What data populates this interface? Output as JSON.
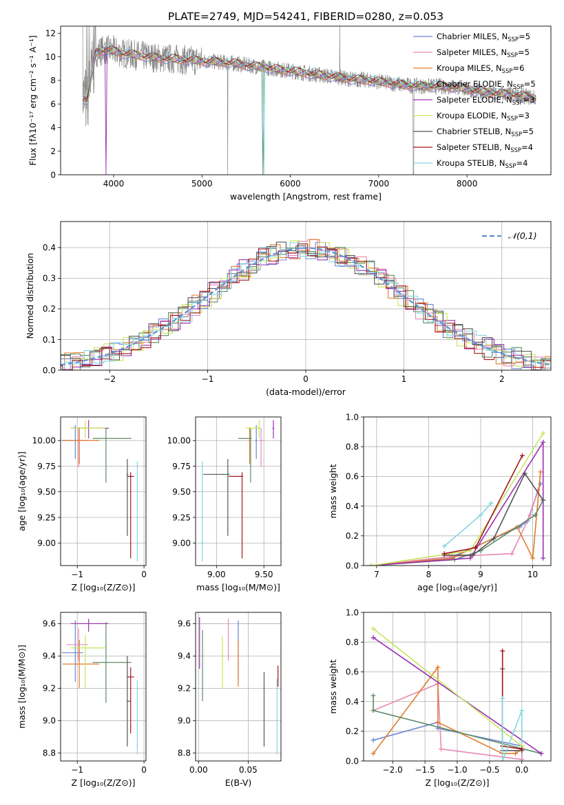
{
  "figure_title": "PLATE=2749, MJD=54241, FIBERID=0280, z=0.053",
  "colors": {
    "series": [
      "#6a85d3",
      "#e887b4",
      "#e07b2b",
      "#5c8a64",
      "#9b2fb0",
      "#c5e65a",
      "#555555",
      "#a3141a",
      "#84d6df"
    ],
    "data_spectrum": "#888888",
    "normal_curve": "#5a8fd6",
    "grid": "#b0b0b0"
  },
  "chart_data": [
    {
      "id": "spectrum",
      "type": "line",
      "title": "PLATE=2749, MJD=54241, FIBERID=0280, z=0.053",
      "xlabel": "wavelength [Angstrom, rest frame]",
      "ylabel": "Flux [fλ10⁻¹⁷ erg cm⁻² s⁻¹ A⁻¹]",
      "xlim": [
        3400,
        8950
      ],
      "ylim": [
        0,
        12.6
      ],
      "xticks": [
        4000,
        5000,
        6000,
        7000,
        8000
      ],
      "yticks": [
        0,
        2,
        4,
        6,
        8,
        10,
        12
      ],
      "grid": false,
      "legend_position": "top-right",
      "legend": [
        "Chabrier MILES, N_SSP=5",
        "Salpeter MILES, N_SSP=5",
        "Kroupa MILES, N_SSP=6",
        "Chabrier ELODIE, N_SSP=5",
        "Salpeter ELODIE, N_SSP=3",
        "Kroupa ELODIE, N_SSP=3",
        "Chabrier STELIB, N_SSP=5",
        "Salpeter STELIB, N_SSP=4",
        "Kroupa STELIB, N_SSP=4"
      ],
      "continuum": {
        "x": [
          3650,
          3700,
          3760,
          3800,
          3900,
          4000,
          4100,
          4200,
          4300,
          4400,
          4500,
          4700,
          4900,
          5100,
          5300,
          5500,
          5700,
          5900,
          6100,
          6300,
          6500,
          6700,
          6900,
          7100,
          7300,
          7500,
          7700,
          7900,
          8100,
          8300,
          8500,
          8700,
          8780
        ],
        "y": [
          6.5,
          6.3,
          8.8,
          10.4,
          10.6,
          10.5,
          10.3,
          10.2,
          10.1,
          10.0,
          9.9,
          9.8,
          9.7,
          9.6,
          9.5,
          9.3,
          9.1,
          8.9,
          8.7,
          8.5,
          8.3,
          8.1,
          8.0,
          7.8,
          7.6,
          7.5,
          7.5,
          7.4,
          7.1,
          6.9,
          6.8,
          6.6,
          6.5
        ]
      }
    },
    {
      "id": "residuals",
      "type": "step",
      "xlabel": "(data-model)/error",
      "ylabel": "Normed distribution",
      "xlim": [
        -2.5,
        2.5
      ],
      "ylim": [
        0,
        0.485
      ],
      "xticks": [
        -2,
        -1,
        0,
        1,
        2
      ],
      "yticks": [
        0.0,
        0.1,
        0.2,
        0.3,
        0.4
      ],
      "grid": true,
      "legend": [
        "𝒩(0,1)"
      ],
      "legend_position": "top-right",
      "normal": {
        "mean": 0,
        "sigma": 1
      }
    },
    {
      "id": "age_vs_z",
      "type": "errorbar",
      "xlabel": "Z [log₁₀(Z/Z⊙)]",
      "ylabel": "age  [log₁₀(age/yr)]",
      "xlim": [
        -1.25,
        0.03
      ],
      "ylim": [
        8.78,
        10.23
      ],
      "xticks": [
        -1,
        0
      ],
      "yticks": [
        9.0,
        9.25,
        9.5,
        9.75,
        10.0
      ],
      "grid": true,
      "points": [
        {
          "x": -1.03,
          "xerr": [
            0.2,
            0.12
          ],
          "y": 10.0,
          "yerr": [
            0.18,
            0.15
          ]
        },
        {
          "x": -0.98,
          "xerr": [
            0.18,
            0.14
          ],
          "y": 10.0,
          "yerr": [
            0.26,
            0.12
          ]
        },
        {
          "x": -0.97,
          "xerr": [
            0.25,
            0.3
          ],
          "y": 10.0,
          "yerr": [
            0.23,
            0.13
          ]
        },
        {
          "x": -0.57,
          "xerr": [
            0.2,
            0.38
          ],
          "y": 10.02,
          "yerr": [
            0.43,
            0.1
          ]
        },
        {
          "x": -0.83,
          "xerr": [
            0.27,
            0.3
          ],
          "y": 10.12,
          "yerr": [
            0.1,
            0.08
          ]
        },
        {
          "x": -0.88,
          "xerr": [
            0.22,
            0.3
          ],
          "y": 10.12,
          "yerr": [
            0.1,
            0.08
          ]
        },
        {
          "x": -0.25,
          "xerr": [
            0.01,
            0.01
          ],
          "y": 9.67,
          "yerr": [
            0.6,
            0.15
          ]
        },
        {
          "x": -0.2,
          "xerr": [
            0.05,
            0.05
          ],
          "y": 9.65,
          "yerr": [
            0.8,
            0.04
          ]
        },
        {
          "x": -0.1,
          "xerr": [
            0.01,
            0.01
          ],
          "y": 9.0,
          "yerr": [
            0.18,
            0.8
          ]
        }
      ]
    },
    {
      "id": "age_vs_mass",
      "type": "errorbar",
      "xlabel": "mass [log₁₀(M/M⊙)]",
      "ylabel": "",
      "xlim": [
        8.78,
        9.68
      ],
      "ylim": [
        8.78,
        10.23
      ],
      "xticks": [
        9.0,
        9.5
      ],
      "yticks": [
        9.0,
        9.25,
        9.5,
        9.75,
        10.0
      ],
      "grid": true,
      "points": [
        {
          "x": 9.42,
          "xerr": [
            0.01,
            0.01
          ],
          "y": 10.0,
          "yerr": [
            0.18,
            0.15
          ]
        },
        {
          "x": 9.47,
          "xerr": [
            0.02,
            0.02
          ],
          "y": 10.0,
          "yerr": [
            0.26,
            0.12
          ]
        },
        {
          "x": 9.35,
          "xerr": [
            0.01,
            0.01
          ],
          "y": 10.0,
          "yerr": [
            0.23,
            0.13
          ]
        },
        {
          "x": 9.36,
          "xerr": [
            0.13,
            0.01
          ],
          "y": 10.02,
          "yerr": [
            0.43,
            0.1
          ]
        },
        {
          "x": 9.6,
          "xerr": [
            0.01,
            0.01
          ],
          "y": 10.12,
          "yerr": [
            0.1,
            0.08
          ]
        },
        {
          "x": 9.45,
          "xerr": [
            0.14,
            0.02
          ],
          "y": 10.12,
          "yerr": [
            0.1,
            0.08
          ]
        },
        {
          "x": 9.12,
          "xerr": [
            0.26,
            0.02
          ],
          "y": 9.67,
          "yerr": [
            0.6,
            0.15
          ]
        },
        {
          "x": 9.27,
          "xerr": [
            0.14,
            0.01
          ],
          "y": 9.65,
          "yerr": [
            0.8,
            0.04
          ]
        },
        {
          "x": 8.85,
          "xerr": [
            0.02,
            0.02
          ],
          "y": 9.0,
          "yerr": [
            0.18,
            0.8
          ]
        }
      ]
    },
    {
      "id": "mass_weight_vs_age",
      "type": "line",
      "xlabel": "age  [log₁₀(age/yr)]",
      "ylabel": "mass weight",
      "xlim": [
        6.75,
        10.35
      ],
      "ylim": [
        0,
        1.0
      ],
      "xticks": [
        7,
        8,
        9,
        10
      ],
      "yticks": [
        0.0,
        0.2,
        0.4,
        0.6,
        0.8,
        1.0
      ],
      "grid": true,
      "series": [
        {
          "x": [
            6.9,
            8.4,
            9.75,
            9.9,
            10.15
          ],
          "y": [
            0.0,
            0.05,
            0.26,
            0.3,
            0.55
          ]
        },
        {
          "x": [
            6.9,
            8.4,
            9.6,
            9.95,
            10.1
          ],
          "y": [
            0.0,
            0.06,
            0.08,
            0.34,
            0.51
          ]
        },
        {
          "x": [
            6.9,
            8.45,
            9.7,
            10.0,
            10.15
          ],
          "y": [
            0.0,
            0.05,
            0.26,
            0.05,
            0.63
          ]
        },
        {
          "x": [
            6.9,
            8.5,
            9.0,
            10.05,
            10.2
          ],
          "y": [
            0.0,
            0.04,
            0.1,
            0.34,
            0.44
          ]
        },
        {
          "x": [
            6.9,
            8.8,
            10.2,
            10.2
          ],
          "y": [
            0.0,
            0.05,
            0.83,
            0.05
          ]
        },
        {
          "x": [
            6.9,
            8.8,
            10.2
          ],
          "y": [
            0.0,
            0.1,
            0.89
          ]
        },
        {
          "x": [
            8.3,
            8.85,
            9.25,
            9.85,
            10.2
          ],
          "y": [
            0.07,
            0.07,
            0.18,
            0.62,
            0.44
          ]
        },
        {
          "x": [
            8.3,
            8.9,
            9.8
          ],
          "y": [
            0.08,
            0.12,
            0.74
          ]
        },
        {
          "x": [
            8.3,
            9.0,
            9.2
          ],
          "y": [
            0.13,
            0.34,
            0.42
          ]
        }
      ]
    },
    {
      "id": "mass_vs_z",
      "type": "errorbar",
      "xlabel": "Z [log₁₀(Z/Z⊙)]",
      "ylabel": "mass [log₁₀(M/M⊙)]",
      "xlim": [
        -1.25,
        0.03
      ],
      "ylim": [
        8.75,
        9.67
      ],
      "xticks": [
        -1,
        0
      ],
      "yticks": [
        8.8,
        9.0,
        9.2,
        9.4,
        9.6
      ],
      "grid": true,
      "points": [
        {
          "x": -1.03,
          "xerr": [
            0.2,
            0.12
          ],
          "y": 9.42,
          "yerr": [
            0.18,
            0.2
          ]
        },
        {
          "x": -0.98,
          "xerr": [
            0.18,
            0.14
          ],
          "y": 9.47,
          "yerr": [
            0.1,
            0.1
          ]
        },
        {
          "x": -0.97,
          "xerr": [
            0.25,
            0.3
          ],
          "y": 9.35,
          "yerr": [
            0.15,
            0.15
          ]
        },
        {
          "x": -0.57,
          "xerr": [
            0.2,
            0.38
          ],
          "y": 9.36,
          "yerr": [
            0.25,
            0.25
          ]
        },
        {
          "x": -0.83,
          "xerr": [
            0.27,
            0.3
          ],
          "y": 9.6,
          "yerr": [
            0.05,
            0.03
          ]
        },
        {
          "x": -0.88,
          "xerr": [
            0.22,
            0.3
          ],
          "y": 9.45,
          "yerr": [
            0.25,
            0.08
          ]
        },
        {
          "x": -0.25,
          "xerr": [
            0.01,
            0.05
          ],
          "y": 9.12,
          "yerr": [
            0.28,
            0.28
          ]
        },
        {
          "x": -0.2,
          "xerr": [
            0.05,
            0.05
          ],
          "y": 9.27,
          "yerr": [
            0.35,
            0.06
          ]
        },
        {
          "x": -0.1,
          "xerr": [
            0.01,
            0.01
          ],
          "y": 8.85,
          "yerr": [
            0.06,
            0.4
          ]
        }
      ]
    },
    {
      "id": "mass_vs_ebv",
      "type": "errorbar",
      "xlabel": "E(B-V)",
      "ylabel": "",
      "xlim": [
        -0.003,
        0.083
      ],
      "ylim": [
        8.75,
        9.67
      ],
      "xticks": [
        0.0,
        0.05
      ],
      "yticks": [
        8.8,
        9.0,
        9.2,
        9.4,
        9.6
      ],
      "grid": true,
      "points": [
        {
          "x": 0.04,
          "xerr": [
            0.0,
            0.0
          ],
          "y": 9.42,
          "yerr": [
            0.18,
            0.2
          ]
        },
        {
          "x": 0.03,
          "xerr": [
            0.0,
            0.0
          ],
          "y": 9.47,
          "yerr": [
            0.1,
            0.16
          ]
        },
        {
          "x": 0.04,
          "xerr": [
            0.0,
            0.0
          ],
          "y": 9.35,
          "yerr": [
            0.14,
            0.15
          ]
        },
        {
          "x": 0.004,
          "xerr": [
            0.0,
            0.0
          ],
          "y": 9.36,
          "yerr": [
            0.24,
            0.2
          ]
        },
        {
          "x": 0.001,
          "xerr": [
            0.0,
            0.0
          ],
          "y": 9.48,
          "yerr": [
            0.16,
            0.16
          ]
        },
        {
          "x": 0.024,
          "xerr": [
            0.0,
            0.0
          ],
          "y": 9.37,
          "yerr": [
            0.17,
            0.15
          ]
        },
        {
          "x": 0.066,
          "xerr": [
            0.0,
            0.0
          ],
          "y": 9.07,
          "yerr": [
            0.23,
            0.23
          ]
        },
        {
          "x": 0.08,
          "xerr": [
            0.0,
            0.0
          ],
          "y": 9.27,
          "yerr": [
            0.06,
            0.07
          ]
        },
        {
          "x": 0.079,
          "xerr": [
            0.0,
            0.0
          ],
          "y": 9.0,
          "yerr": [
            0.21,
            0.26
          ]
        }
      ]
    },
    {
      "id": "mass_weight_vs_z",
      "type": "line",
      "xlabel": "Z [log₁₀(Z/Z⊙)]",
      "ylabel": "mass weight",
      "xlim": [
        -2.45,
        0.45
      ],
      "ylim": [
        0,
        1.0
      ],
      "xticks": [
        -2.0,
        -1.5,
        -1.0,
        -0.5,
        0.0
      ],
      "yticks": [
        0.0,
        0.2,
        0.4,
        0.6,
        0.8,
        1.0
      ],
      "grid": true,
      "series": [
        {
          "x": [
            -2.3,
            -1.3,
            -1.3,
            0.0,
            0.0
          ],
          "y": [
            0.14,
            0.26,
            0.22,
            0.1,
            0.01
          ]
        },
        {
          "x": [
            -2.3,
            -1.3,
            -1.25,
            0.0,
            0.0
          ],
          "y": [
            0.34,
            0.52,
            0.08,
            0.01,
            0.08
          ]
        },
        {
          "x": [
            -2.3,
            -1.3,
            -1.3,
            -0.3,
            -0.1,
            0.0
          ],
          "y": [
            0.05,
            0.63,
            0.26,
            0.05,
            0.05,
            0.08
          ]
        },
        {
          "x": [
            -2.3,
            -2.3,
            0.3
          ],
          "y": [
            0.44,
            0.34,
            0.05
          ]
        },
        {
          "x": [
            -2.3,
            0.3
          ],
          "y": [
            0.83,
            0.05
          ]
        },
        {
          "x": [
            -2.3,
            0.0
          ],
          "y": [
            0.89,
            0.1
          ]
        },
        {
          "x": [
            -0.3,
            -0.3,
            0.0
          ],
          "y": [
            0.62,
            0.07,
            0.07
          ]
        },
        {
          "x": [
            -0.3,
            -0.3,
            0.0
          ],
          "y": [
            0.74,
            0.1,
            0.08
          ]
        },
        {
          "x": [
            -0.3,
            -0.3,
            0.0,
            0.0
          ],
          "y": [
            0.42,
            0.0,
            0.34,
            0.13
          ]
        }
      ]
    }
  ]
}
